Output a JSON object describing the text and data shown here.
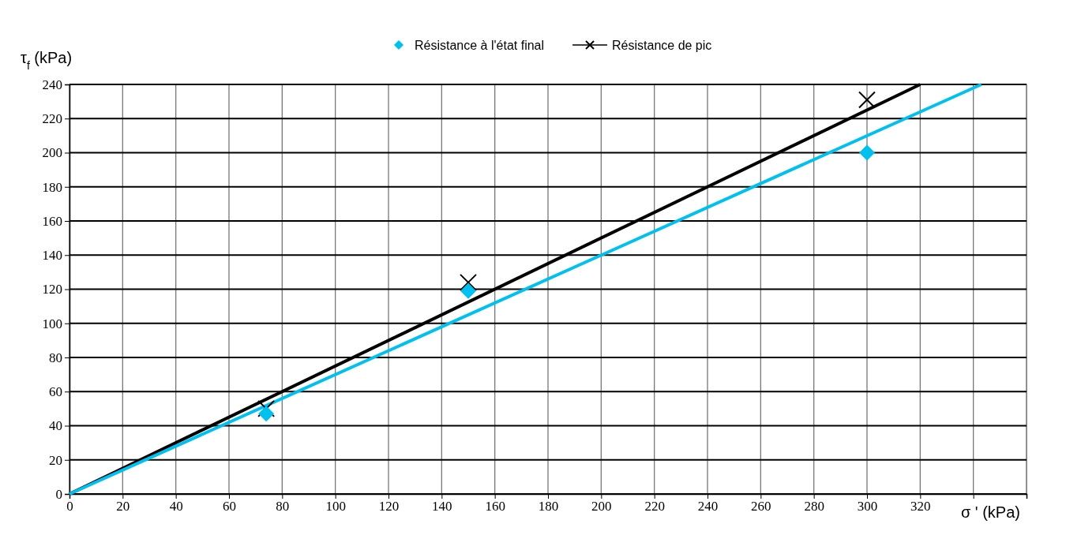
{
  "chart_data": {
    "type": "scatter",
    "xlabel": "σ ' (kPa)",
    "ylabel": "τ$_{f}$ (kPa)",
    "xlim": [
      0,
      360
    ],
    "xticks": [
      0,
      20,
      40,
      60,
      80,
      100,
      120,
      140,
      160,
      180,
      200,
      220,
      240,
      260,
      280,
      300,
      320,
      {
        "value": 340,
        "label": null
      },
      {
        "value": 360,
        "label": null
      }
    ],
    "ylim": [
      0,
      240
    ],
    "yticks": [
      0,
      20,
      40,
      60,
      80,
      100,
      120,
      140,
      160,
      180,
      200,
      220,
      240
    ],
    "grid": true,
    "legend": "top",
    "series": [
      {
        "type": "line",
        "color": "#000000",
        "x": [
          0,
          320
        ],
        "values": [
          0,
          240
        ],
        "marker": "none"
      },
      {
        "type": "line",
        "color": "#00c0f0",
        "x": [
          0,
          343
        ],
        "values": [
          0,
          240
        ],
        "marker": "none"
      },
      {
        "name": "Résistance de pic",
        "color": "#000000",
        "x": [
          74,
          150,
          300
        ],
        "values": [
          50,
          124,
          231
        ],
        "marker": "cross"
      },
      {
        "name": "Résistance à l'état final",
        "color": "#00c0f0",
        "x": [
          74,
          150,
          300
        ],
        "values": [
          47,
          119,
          200
        ],
        "marker": "diamond"
      }
    ]
  }
}
